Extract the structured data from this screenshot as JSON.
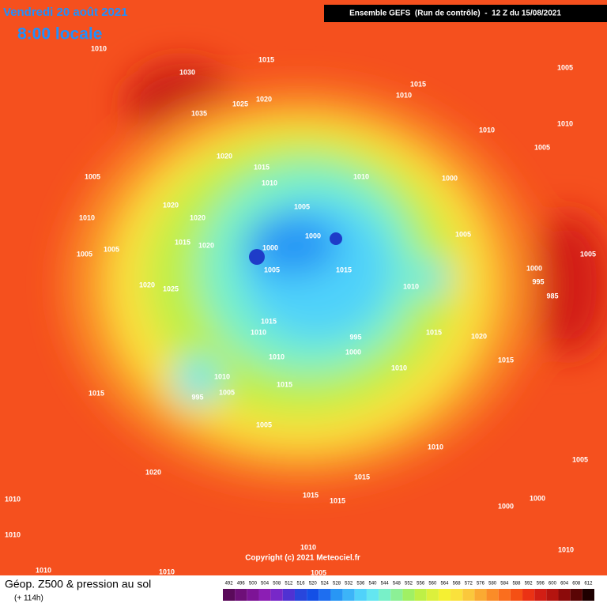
{
  "header": {
    "date": "Vendredi 20 août 2021",
    "time": "8:00 locale",
    "run": "Ensemble GEFS  (Run de contrôle)  -  12 Z du 15/08/2021"
  },
  "pressure_labels": [
    "1010",
    "1030",
    "1035",
    "1015",
    "1015",
    "1010",
    "1005",
    "1025",
    "1020",
    "1010",
    "1010",
    "1005",
    "1020",
    "1015",
    "1010",
    "1000",
    "1010",
    "1005",
    "1020",
    "1005",
    "1020",
    "1010",
    "1015",
    "1020",
    "1000",
    "1005",
    "1005",
    "1005",
    "1000",
    "1005",
    "1005",
    "1015",
    "1000",
    "995",
    "1020",
    "1025",
    "1010",
    "985",
    "1015",
    "1010",
    "1015",
    "1020",
    "995",
    "1000",
    "1010",
    "1015",
    "1010",
    "1010",
    "1015",
    "1015",
    "1005",
    "995",
    "1005",
    "1010",
    "1005",
    "1020",
    "1015",
    "1015",
    "1015",
    "1010",
    "1000",
    "1000",
    "1010",
    "1010",
    "1010",
    "1010",
    "1010",
    "1005"
  ],
  "credit": "Copyright (c) 2021 Meteociel.fr",
  "legend": {
    "title": "Géop. Z500 & pression au sol",
    "lead": "(+ 114h)",
    "scale": [
      492,
      496,
      500,
      504,
      508,
      512,
      516,
      520,
      524,
      528,
      532,
      536,
      540,
      544,
      548,
      552,
      556,
      560,
      564,
      568,
      572,
      576,
      580,
      584,
      588,
      592,
      596,
      600,
      604,
      608,
      612
    ],
    "colors": [
      "#5a0a5a",
      "#6e0f78",
      "#7d1496",
      "#8c1eb4",
      "#7828c8",
      "#5032d2",
      "#2846dc",
      "#1450e6",
      "#1e6ef0",
      "#2896f5",
      "#3cb4f8",
      "#50d2fa",
      "#64e6f0",
      "#78f0c8",
      "#8cf096",
      "#a0f064",
      "#bef046",
      "#dcf03c",
      "#f5f032",
      "#fae13c",
      "#fac83c",
      "#faaa32",
      "#fa8c28",
      "#fa6e1e",
      "#f55014",
      "#eb3214",
      "#d21e14",
      "#b4140f",
      "#8c0a0a",
      "#5a0505",
      "#1e0000"
    ]
  }
}
